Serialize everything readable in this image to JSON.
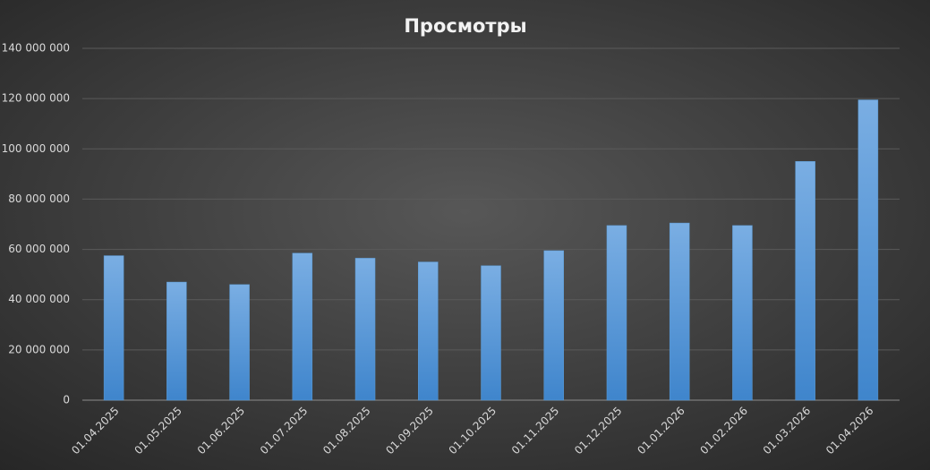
{
  "chart_data": {
    "type": "bar",
    "title": "Просмотры",
    "categories": [
      "01.04.2025",
      "01.05.2025",
      "01.06.2025",
      "01.07.2025",
      "01.08.2025",
      "01.09.2025",
      "01.10.2025",
      "01.11.2025",
      "01.12.2025",
      "01.01.2026",
      "01.02.2026",
      "01.03.2026",
      "01.04.2026"
    ],
    "values": [
      57500000,
      47000000,
      46000000,
      58500000,
      56500000,
      55000000,
      53500000,
      59500000,
      69500000,
      70500000,
      69500000,
      95000000,
      119500000
    ],
    "color": "#5b9bd5",
    "ylim": [
      0,
      140000000
    ],
    "yticks": [
      0,
      {
        "value": 20000000,
        "label": "20 000 000"
      },
      {
        "value": 40000000,
        "label": "40 000 000"
      },
      {
        "value": 60000000,
        "label": "60 000 000"
      },
      {
        "value": 80000000,
        "label": "80 000 000"
      },
      {
        "value": 100000000,
        "label": "100 000 000"
      },
      {
        "value": 120000000,
        "label": "120 000 000"
      },
      {
        "value": 140000000,
        "label": "140 000 000"
      }
    ],
    "grid": true
  }
}
